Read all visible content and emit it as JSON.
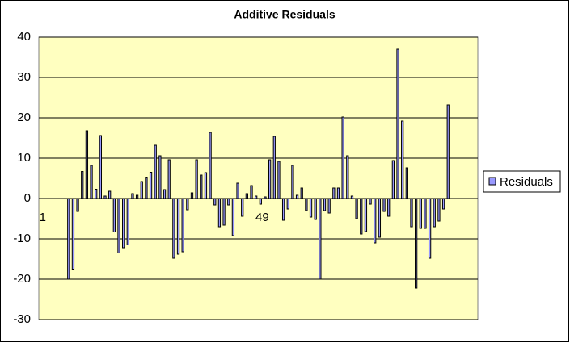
{
  "chart_data": {
    "type": "bar",
    "title": "Additive Residuals",
    "categories": [
      "1",
      null,
      null,
      null,
      null,
      null,
      null,
      null,
      null,
      null,
      null,
      null,
      null,
      null,
      null,
      null,
      null,
      null,
      null,
      null,
      null,
      null,
      null,
      null,
      null,
      null,
      null,
      null,
      null,
      null,
      null,
      null,
      null,
      null,
      null,
      null,
      null,
      null,
      null,
      null,
      null,
      null,
      null,
      null,
      null,
      null,
      null,
      null,
      "49",
      null,
      null,
      null,
      null,
      null,
      null,
      null,
      null,
      null,
      null,
      null,
      null,
      null,
      null,
      null,
      null,
      null,
      null,
      null,
      null,
      null,
      null,
      null,
      null,
      null,
      null,
      null,
      null,
      null,
      null,
      null,
      null,
      null,
      null,
      null,
      null,
      null,
      null,
      null,
      null,
      null,
      null,
      null,
      null,
      null,
      null,
      null
    ],
    "series": [
      {
        "name": "Residuals",
        "color": "#9999ff",
        "values": [
          null,
          null,
          null,
          null,
          null,
          null,
          -20,
          -17.5,
          -3.2,
          6.7,
          16.8,
          8.2,
          2.3,
          15.6,
          0.6,
          1.8,
          -8.3,
          -13.5,
          -12.2,
          -11.5,
          1.2,
          0.8,
          4.2,
          5.3,
          6.5,
          13.2,
          10.6,
          2.2,
          9.6,
          -14.8,
          -13.8,
          -13.2,
          -2.8,
          1.4,
          9.6,
          5.8,
          6.4,
          16.4,
          -1.6,
          -7,
          -6.6,
          -1.6,
          -9.2,
          3.8,
          -4.4,
          1.2,
          3.2,
          0.6,
          -1.4,
          0.4,
          9.6,
          15.4,
          9.2,
          -5.4,
          -2.6,
          8.2,
          0.8,
          2.6,
          -3,
          -4.6,
          -5.2,
          -20,
          -3,
          -3.6,
          2.6,
          2.6,
          20.2,
          10.6,
          0.6,
          -5,
          -8.8,
          -8.2,
          -1.4,
          -11,
          -9.6,
          -3.2,
          -4.4,
          9.4,
          37,
          19.2,
          7.6,
          -7,
          -22.2,
          -7.4,
          -7.4,
          -14.8,
          -7,
          -5.6,
          -2.6,
          23.2,
          null,
          null,
          null,
          null,
          null,
          null
        ]
      }
    ],
    "ylim": [
      -30,
      40
    ],
    "yticks": [
      -30,
      -20,
      -10,
      0,
      10,
      20,
      30,
      40
    ],
    "grid": true,
    "legend": "right"
  }
}
